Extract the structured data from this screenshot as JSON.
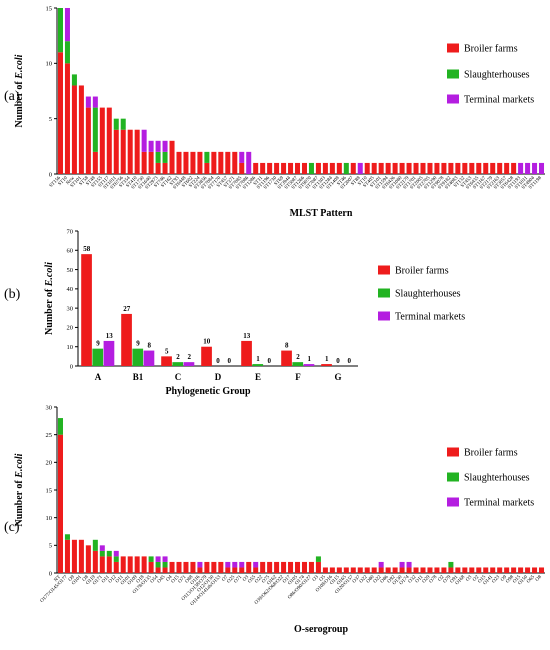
{
  "colors": {
    "broiler": "#ee1c1c",
    "slaughter": "#22b322",
    "terminal": "#b41ee0"
  },
  "legend": [
    "Broiler farms",
    "Slaughterhouses",
    "Terminal markets"
  ],
  "panel_letters": [
    "(a)",
    "(b)",
    "(c)"
  ],
  "chart_data": [
    {
      "type": "bar",
      "stacked": true,
      "ylabel_prefix": "Number of ",
      "ylabel_italic": "E.coli",
      "xlabel": "MLST Pattern",
      "ylim": [
        0,
        15
      ],
      "yticks": [
        0,
        5,
        10,
        15
      ],
      "categories": [
        "ST156",
        "ST10",
        "New",
        "ST101",
        "ST58",
        "ST48",
        "ST155",
        "ST117",
        "ST1011",
        "ST6756",
        "ST354",
        "ST410",
        "ST1730",
        "ST1640",
        "ST2973",
        "ST746",
        "ST162",
        "ST93",
        "ST6448",
        "ST602",
        "ST224",
        "ST3856",
        "ST7084",
        "ST7170",
        "ST457",
        "ST371",
        "ST7085",
        "ST7086",
        "ST1286",
        "ST11",
        "ST1196",
        "ST1730",
        "ST69",
        "ST3944",
        "ST5087",
        "ST1266",
        "ST9070",
        "ST7087",
        "ST1303",
        "ST1284",
        "ST1408",
        "ST46",
        "ST2007",
        "ST88",
        "ST10",
        "ST405",
        "ST101",
        "ST1594",
        "ST6426",
        "ST1080",
        "ST2179",
        "ST1701",
        "ST2005",
        "ST2705",
        "ST1290",
        "ST9078",
        "ST9182",
        "ST4083",
        "ST132",
        "ST453",
        "ST6435",
        "ST1167",
        "ST2179",
        "ST2163",
        "ST3057",
        "ST6428",
        "ST1193",
        "ST1011",
        "ST4904",
        "ST1198"
      ],
      "series": [
        {
          "name": "Broiler farms",
          "values": [
            11,
            10,
            8,
            8,
            6,
            2,
            6,
            6,
            4,
            4,
            4,
            4,
            2,
            2,
            1,
            1,
            3,
            2,
            2,
            2,
            2,
            1,
            2,
            2,
            2,
            2,
            1,
            0,
            1,
            1,
            1,
            1,
            1,
            1,
            1,
            1,
            0,
            1,
            1,
            1,
            1,
            0,
            1,
            0,
            1,
            1,
            1,
            1,
            1,
            1,
            1,
            1,
            1,
            1,
            1,
            1,
            1,
            1,
            1,
            1,
            1,
            1,
            1,
            1,
            1,
            1,
            0,
            0,
            0,
            0
          ]
        },
        {
          "name": "Slaughterhouses",
          "values": [
            4,
            2,
            1,
            0,
            0,
            4,
            0,
            0,
            1,
            1,
            0,
            0,
            0,
            0,
            1,
            1,
            0,
            0,
            0,
            0,
            0,
            1,
            0,
            0,
            0,
            0,
            0,
            0,
            0,
            0,
            0,
            0,
            0,
            0,
            0,
            0,
            1,
            0,
            0,
            0,
            0,
            1,
            0,
            0,
            0,
            0,
            0,
            0,
            0,
            0,
            0,
            0,
            0,
            0,
            0,
            0,
            0,
            0,
            0,
            0,
            0,
            0,
            0,
            0,
            0,
            0,
            0,
            0,
            0,
            0
          ]
        },
        {
          "name": "Terminal markets",
          "values": [
            0,
            3,
            0,
            0,
            1,
            1,
            0,
            0,
            0,
            0,
            0,
            0,
            2,
            1,
            1,
            1,
            0,
            0,
            0,
            0,
            0,
            0,
            0,
            0,
            0,
            0,
            1,
            2,
            0,
            0,
            0,
            0,
            0,
            0,
            0,
            0,
            0,
            0,
            0,
            0,
            0,
            0,
            0,
            1,
            0,
            0,
            0,
            0,
            0,
            0,
            0,
            0,
            0,
            0,
            0,
            0,
            0,
            0,
            0,
            0,
            0,
            0,
            0,
            0,
            0,
            0,
            1,
            1,
            1,
            1
          ]
        }
      ]
    },
    {
      "type": "bar",
      "stacked": false,
      "ylabel_prefix": "Number of ",
      "ylabel_italic": "E.coli",
      "xlabel": "Phylogenetic Group",
      "ylim": [
        0,
        70
      ],
      "yticks": [
        0,
        10,
        20,
        30,
        40,
        50,
        60,
        70
      ],
      "categories": [
        "A",
        "B1",
        "C",
        "D",
        "E",
        "F",
        "G"
      ],
      "series": [
        {
          "name": "Broiler farms",
          "values": [
            58,
            27,
            5,
            10,
            13,
            8,
            1
          ]
        },
        {
          "name": "Slaughterhouses",
          "values": [
            9,
            9,
            2,
            0,
            1,
            2,
            0
          ]
        },
        {
          "name": "Terminal markets",
          "values": [
            13,
            8,
            2,
            0,
            0,
            1,
            0
          ]
        }
      ]
    },
    {
      "type": "bar",
      "stacked": true,
      "ylabel_prefix": "Number of ",
      "ylabel_italic": "E.coli",
      "xlabel": "O-serogroup",
      "ylim": [
        0,
        30
      ],
      "yticks": [
        0,
        5,
        10,
        15,
        20,
        25,
        30
      ],
      "categories": [
        "NT",
        "O177/O145/O177",
        "O9",
        "O101",
        "O8",
        "O119",
        "O171",
        "O11",
        "O12",
        "O11",
        "O101",
        "O109",
        "O18",
        "O178/O135",
        "O54",
        "O45",
        "O4",
        "O15",
        "O71",
        "O88",
        "O116",
        "O113/O138/O79",
        "O12/O130",
        "O114/O141ab/O153",
        "O7",
        "O25",
        "O71",
        "O3",
        "O55",
        "O22",
        "O75",
        "O162",
        "O39/O62/O68/O22",
        "O17",
        "O105",
        "O174",
        "O86/O90/O127",
        "O3",
        "O5",
        "O108/O16",
        "O115",
        "O165",
        "O120/O157",
        "O37",
        "O22",
        "O80",
        "O22",
        "O86",
        "O92",
        "O130",
        "O174",
        "O32",
        "O11",
        "O29",
        "O78",
        "O2",
        "O79",
        "O91",
        "O168",
        "O3",
        "O2",
        "O15",
        "O141",
        "O23",
        "O9",
        "O98",
        "O15",
        "O150",
        "O65",
        "O8"
      ],
      "series": [
        {
          "name": "Broiler farms",
          "values": [
            25,
            6,
            6,
            6,
            5,
            4,
            3,
            3,
            2,
            3,
            3,
            3,
            3,
            2,
            1,
            1,
            2,
            2,
            2,
            2,
            1,
            2,
            2,
            2,
            1,
            1,
            1,
            2,
            1,
            2,
            2,
            2,
            2,
            2,
            2,
            2,
            2,
            2,
            1,
            1,
            1,
            1,
            1,
            1,
            1,
            1,
            1,
            1,
            1,
            1,
            1,
            1,
            1,
            1,
            1,
            1,
            1,
            1,
            1,
            1,
            1,
            1,
            1,
            1,
            1,
            1,
            1,
            1,
            1,
            1
          ]
        },
        {
          "name": "Slaughterhouses",
          "values": [
            3,
            1,
            0,
            0,
            0,
            2,
            1,
            1,
            1,
            0,
            0,
            0,
            0,
            1,
            1,
            1,
            0,
            0,
            0,
            0,
            0,
            0,
            0,
            0,
            0,
            0,
            0,
            0,
            0,
            0,
            0,
            0,
            0,
            0,
            0,
            0,
            0,
            1,
            0,
            0,
            0,
            0,
            0,
            0,
            0,
            0,
            0,
            0,
            0,
            0,
            0,
            0,
            0,
            0,
            0,
            0,
            1,
            0,
            0,
            0,
            0,
            0,
            0,
            0,
            0,
            0,
            0,
            0,
            0,
            0
          ]
        },
        {
          "name": "Terminal markets",
          "values": [
            0,
            0,
            0,
            0,
            0,
            0,
            1,
            0,
            1,
            0,
            0,
            0,
            0,
            0,
            1,
            1,
            0,
            0,
            0,
            0,
            1,
            0,
            0,
            0,
            1,
            1,
            1,
            0,
            1,
            0,
            0,
            0,
            0,
            0,
            0,
            0,
            0,
            0,
            0,
            0,
            0,
            0,
            0,
            0,
            0,
            0,
            1,
            0,
            0,
            1,
            1,
            0,
            0,
            0,
            0,
            0,
            0,
            0,
            0,
            0,
            0,
            0,
            0,
            0,
            0,
            0,
            0,
            0,
            0,
            0
          ]
        }
      ]
    }
  ]
}
